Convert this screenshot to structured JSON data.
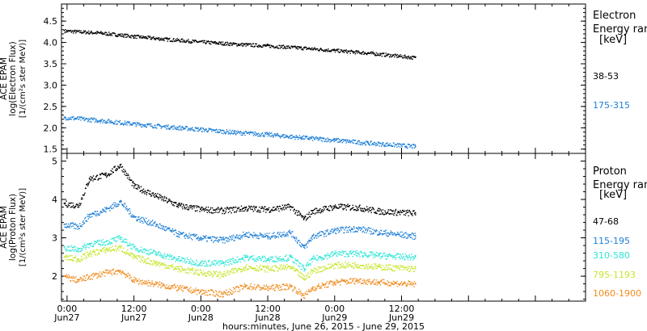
{
  "x_axis": {
    "xlabel": "hours:minutes, June 26, 2015 - June 29, 2015",
    "range_hours": [
      -1,
      93
    ],
    "ticks": [
      {
        "t": 0,
        "time": "0:00",
        "date": "Jun27"
      },
      {
        "t": 12,
        "time": "12:00",
        "date": "Jun27"
      },
      {
        "t": 24,
        "time": "0:00",
        "date": "Jun28"
      },
      {
        "t": 36,
        "time": "12:00",
        "date": "Jun28"
      },
      {
        "t": 48,
        "time": "0:00",
        "date": "Jun29"
      },
      {
        "t": 60,
        "time": "12:00",
        "date": "Jun29"
      }
    ]
  },
  "chart_data": [
    {
      "type": "scatter",
      "ylabel": [
        "ACE EPAM",
        "log(Electron Flux)",
        "[1/(cm²s ster MeV)]"
      ],
      "ylim": [
        1.4,
        4.9
      ],
      "yticks": [
        "1.5",
        "2.0",
        "2.5",
        "3.0",
        "3.5",
        "4.0",
        "4.5"
      ],
      "legend": {
        "title": [
          "Electron",
          "Energy ran",
          "[keV]"
        ],
        "placement": "right"
      },
      "series": [
        {
          "name": "38-53",
          "color": "#000000",
          "x": [
            -0.5,
            6,
            12,
            18,
            24,
            30,
            36,
            42,
            48,
            54,
            62.5
          ],
          "y": [
            4.28,
            4.23,
            4.15,
            4.08,
            4.02,
            3.97,
            3.93,
            3.88,
            3.82,
            3.76,
            3.65
          ],
          "spread": 0.04
        },
        {
          "name": "175-315",
          "color": "#1f7fd6",
          "x": [
            -0.5,
            6,
            12,
            18,
            24,
            30,
            36,
            42,
            48,
            54,
            62.5
          ],
          "y": [
            2.25,
            2.18,
            2.1,
            2.03,
            1.97,
            1.9,
            1.85,
            1.78,
            1.72,
            1.65,
            1.57
          ],
          "spread": 0.05
        }
      ]
    },
    {
      "type": "scatter",
      "ylabel": [
        "ACE EPAM",
        "log(Proton Flux)",
        "[1/(cm²s ster MeV)]"
      ],
      "ylim": [
        1.35,
        5.2
      ],
      "yticks": [
        "2",
        "3",
        "4",
        "5"
      ],
      "legend": {
        "title": [
          "Proton",
          "Energy ran",
          "[keV]"
        ],
        "placement": "right"
      },
      "series": [
        {
          "name": "47-68",
          "color": "#000000",
          "x": [
            -0.5,
            2,
            4,
            7,
            9.5,
            12,
            16,
            20,
            24,
            28,
            32,
            36,
            40,
            42.5,
            44,
            48,
            52,
            56,
            62.5
          ],
          "y": [
            3.9,
            3.85,
            4.55,
            4.65,
            4.9,
            4.35,
            4.1,
            3.85,
            3.75,
            3.72,
            3.78,
            3.75,
            3.82,
            3.5,
            3.7,
            3.82,
            3.8,
            3.7,
            3.65
          ],
          "spread": 0.08
        },
        {
          "name": "115-195",
          "color": "#1f7fd6",
          "x": [
            -0.5,
            2,
            4,
            7,
            9.5,
            12,
            16,
            20,
            24,
            28,
            32,
            36,
            40,
            42.5,
            44,
            48,
            52,
            56,
            62.5
          ],
          "y": [
            3.35,
            3.3,
            3.6,
            3.75,
            3.95,
            3.55,
            3.35,
            3.1,
            3.0,
            2.95,
            3.1,
            3.05,
            3.15,
            2.75,
            3.05,
            3.2,
            3.25,
            3.15,
            3.05
          ],
          "spread": 0.08
        },
        {
          "name": "310-580",
          "color": "#2ee6d6",
          "x": [
            -0.5,
            2,
            4,
            7,
            9.5,
            12,
            16,
            20,
            24,
            28,
            32,
            36,
            40,
            42.5,
            44,
            48,
            52,
            56,
            62.5
          ],
          "y": [
            2.75,
            2.7,
            2.85,
            2.9,
            3.0,
            2.75,
            2.6,
            2.45,
            2.35,
            2.35,
            2.5,
            2.45,
            2.5,
            2.2,
            2.45,
            2.6,
            2.6,
            2.55,
            2.5
          ],
          "spread": 0.08
        },
        {
          "name": "795-1193",
          "color": "#c6e62e",
          "x": [
            -0.5,
            2,
            4,
            7,
            9.5,
            12,
            16,
            20,
            24,
            28,
            32,
            36,
            40,
            42.5,
            44,
            48,
            52,
            56,
            62.5
          ],
          "y": [
            2.5,
            2.45,
            2.6,
            2.7,
            2.75,
            2.5,
            2.35,
            2.2,
            2.1,
            2.05,
            2.25,
            2.2,
            2.25,
            1.95,
            2.15,
            2.3,
            2.3,
            2.25,
            2.2
          ],
          "spread": 0.08
        },
        {
          "name": "1060-1900",
          "color": "#f08c1e",
          "x": [
            -0.5,
            2,
            4,
            7,
            9.5,
            12,
            16,
            20,
            24,
            28,
            32,
            36,
            40,
            42.5,
            44,
            48,
            52,
            56,
            62.5
          ],
          "y": [
            2.0,
            1.9,
            2.0,
            2.1,
            2.15,
            1.9,
            1.8,
            1.7,
            1.6,
            1.55,
            1.75,
            1.7,
            1.75,
            1.5,
            1.7,
            1.85,
            1.9,
            1.85,
            1.8
          ],
          "spread": 0.08
        }
      ]
    }
  ]
}
